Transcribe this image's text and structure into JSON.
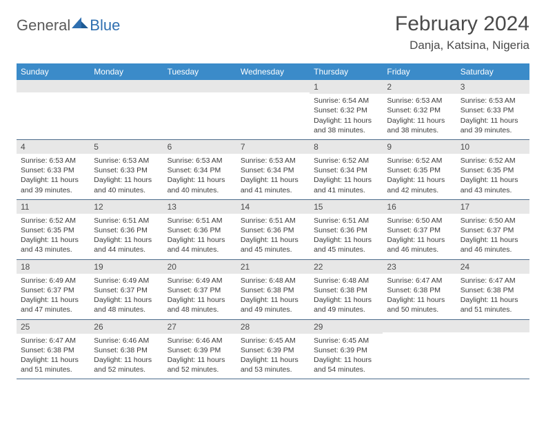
{
  "logo": {
    "text1": "General",
    "text2": "Blue"
  },
  "title": "February 2024",
  "location": "Danja, Katsina, Nigeria",
  "colors": {
    "header_bg": "#3b8bc9",
    "header_text": "#ffffff",
    "daynum_bg": "#e7e7e7",
    "row_border": "#4a6a8a",
    "body_text": "#3a3a3a",
    "title_text": "#4a4a4a",
    "logo_gray": "#5a5a5a",
    "logo_blue": "#2f6fb0"
  },
  "weekdays": [
    "Sunday",
    "Monday",
    "Tuesday",
    "Wednesday",
    "Thursday",
    "Friday",
    "Saturday"
  ],
  "weeks": [
    [
      null,
      null,
      null,
      null,
      {
        "n": "1",
        "sr": "Sunrise: 6:54 AM",
        "ss": "Sunset: 6:32 PM",
        "d1": "Daylight: 11 hours",
        "d2": "and 38 minutes."
      },
      {
        "n": "2",
        "sr": "Sunrise: 6:53 AM",
        "ss": "Sunset: 6:32 PM",
        "d1": "Daylight: 11 hours",
        "d2": "and 38 minutes."
      },
      {
        "n": "3",
        "sr": "Sunrise: 6:53 AM",
        "ss": "Sunset: 6:33 PM",
        "d1": "Daylight: 11 hours",
        "d2": "and 39 minutes."
      }
    ],
    [
      {
        "n": "4",
        "sr": "Sunrise: 6:53 AM",
        "ss": "Sunset: 6:33 PM",
        "d1": "Daylight: 11 hours",
        "d2": "and 39 minutes."
      },
      {
        "n": "5",
        "sr": "Sunrise: 6:53 AM",
        "ss": "Sunset: 6:33 PM",
        "d1": "Daylight: 11 hours",
        "d2": "and 40 minutes."
      },
      {
        "n": "6",
        "sr": "Sunrise: 6:53 AM",
        "ss": "Sunset: 6:34 PM",
        "d1": "Daylight: 11 hours",
        "d2": "and 40 minutes."
      },
      {
        "n": "7",
        "sr": "Sunrise: 6:53 AM",
        "ss": "Sunset: 6:34 PM",
        "d1": "Daylight: 11 hours",
        "d2": "and 41 minutes."
      },
      {
        "n": "8",
        "sr": "Sunrise: 6:52 AM",
        "ss": "Sunset: 6:34 PM",
        "d1": "Daylight: 11 hours",
        "d2": "and 41 minutes."
      },
      {
        "n": "9",
        "sr": "Sunrise: 6:52 AM",
        "ss": "Sunset: 6:35 PM",
        "d1": "Daylight: 11 hours",
        "d2": "and 42 minutes."
      },
      {
        "n": "10",
        "sr": "Sunrise: 6:52 AM",
        "ss": "Sunset: 6:35 PM",
        "d1": "Daylight: 11 hours",
        "d2": "and 43 minutes."
      }
    ],
    [
      {
        "n": "11",
        "sr": "Sunrise: 6:52 AM",
        "ss": "Sunset: 6:35 PM",
        "d1": "Daylight: 11 hours",
        "d2": "and 43 minutes."
      },
      {
        "n": "12",
        "sr": "Sunrise: 6:51 AM",
        "ss": "Sunset: 6:36 PM",
        "d1": "Daylight: 11 hours",
        "d2": "and 44 minutes."
      },
      {
        "n": "13",
        "sr": "Sunrise: 6:51 AM",
        "ss": "Sunset: 6:36 PM",
        "d1": "Daylight: 11 hours",
        "d2": "and 44 minutes."
      },
      {
        "n": "14",
        "sr": "Sunrise: 6:51 AM",
        "ss": "Sunset: 6:36 PM",
        "d1": "Daylight: 11 hours",
        "d2": "and 45 minutes."
      },
      {
        "n": "15",
        "sr": "Sunrise: 6:51 AM",
        "ss": "Sunset: 6:36 PM",
        "d1": "Daylight: 11 hours",
        "d2": "and 45 minutes."
      },
      {
        "n": "16",
        "sr": "Sunrise: 6:50 AM",
        "ss": "Sunset: 6:37 PM",
        "d1": "Daylight: 11 hours",
        "d2": "and 46 minutes."
      },
      {
        "n": "17",
        "sr": "Sunrise: 6:50 AM",
        "ss": "Sunset: 6:37 PM",
        "d1": "Daylight: 11 hours",
        "d2": "and 46 minutes."
      }
    ],
    [
      {
        "n": "18",
        "sr": "Sunrise: 6:49 AM",
        "ss": "Sunset: 6:37 PM",
        "d1": "Daylight: 11 hours",
        "d2": "and 47 minutes."
      },
      {
        "n": "19",
        "sr": "Sunrise: 6:49 AM",
        "ss": "Sunset: 6:37 PM",
        "d1": "Daylight: 11 hours",
        "d2": "and 48 minutes."
      },
      {
        "n": "20",
        "sr": "Sunrise: 6:49 AM",
        "ss": "Sunset: 6:37 PM",
        "d1": "Daylight: 11 hours",
        "d2": "and 48 minutes."
      },
      {
        "n": "21",
        "sr": "Sunrise: 6:48 AM",
        "ss": "Sunset: 6:38 PM",
        "d1": "Daylight: 11 hours",
        "d2": "and 49 minutes."
      },
      {
        "n": "22",
        "sr": "Sunrise: 6:48 AM",
        "ss": "Sunset: 6:38 PM",
        "d1": "Daylight: 11 hours",
        "d2": "and 49 minutes."
      },
      {
        "n": "23",
        "sr": "Sunrise: 6:47 AM",
        "ss": "Sunset: 6:38 PM",
        "d1": "Daylight: 11 hours",
        "d2": "and 50 minutes."
      },
      {
        "n": "24",
        "sr": "Sunrise: 6:47 AM",
        "ss": "Sunset: 6:38 PM",
        "d1": "Daylight: 11 hours",
        "d2": "and 51 minutes."
      }
    ],
    [
      {
        "n": "25",
        "sr": "Sunrise: 6:47 AM",
        "ss": "Sunset: 6:38 PM",
        "d1": "Daylight: 11 hours",
        "d2": "and 51 minutes."
      },
      {
        "n": "26",
        "sr": "Sunrise: 6:46 AM",
        "ss": "Sunset: 6:38 PM",
        "d1": "Daylight: 11 hours",
        "d2": "and 52 minutes."
      },
      {
        "n": "27",
        "sr": "Sunrise: 6:46 AM",
        "ss": "Sunset: 6:39 PM",
        "d1": "Daylight: 11 hours",
        "d2": "and 52 minutes."
      },
      {
        "n": "28",
        "sr": "Sunrise: 6:45 AM",
        "ss": "Sunset: 6:39 PM",
        "d1": "Daylight: 11 hours",
        "d2": "and 53 minutes."
      },
      {
        "n": "29",
        "sr": "Sunrise: 6:45 AM",
        "ss": "Sunset: 6:39 PM",
        "d1": "Daylight: 11 hours",
        "d2": "and 54 minutes."
      },
      null,
      null
    ]
  ]
}
